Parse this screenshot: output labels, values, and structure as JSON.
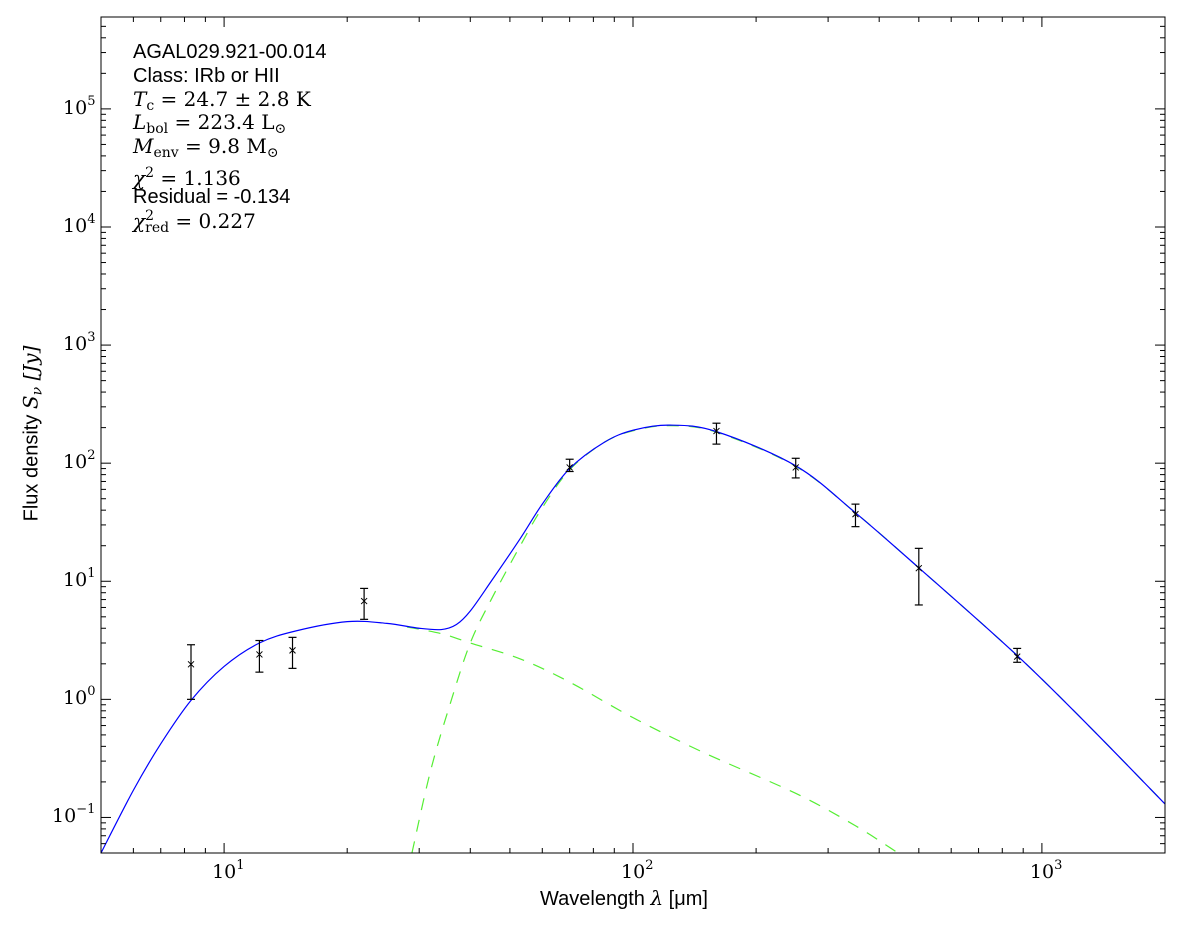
{
  "chart_data": {
    "type": "scatter",
    "title": "",
    "xlabel": {
      "text": "Wavelength ",
      "sym": "λ",
      "unit": " [μm]"
    },
    "ylabel": {
      "text": "Flux density ",
      "sym": "S",
      "sub": "ν",
      "unit": " [Jy]"
    },
    "xscale": "log",
    "yscale": "log",
    "xlim": [
      5,
      2000
    ],
    "ylim": [
      0.05,
      600000
    ],
    "grid": false,
    "x_ticks": [
      {
        "value": 10,
        "exp": "1"
      },
      {
        "value": 100,
        "exp": "2"
      },
      {
        "value": 1000,
        "exp": "3"
      }
    ],
    "y_ticks": [
      {
        "value": 0.1,
        "exp": "−1"
      },
      {
        "value": 1,
        "exp": "0"
      },
      {
        "value": 10,
        "exp": "1"
      },
      {
        "value": 100,
        "exp": "2"
      },
      {
        "value": 1000,
        "exp": "3"
      },
      {
        "value": 10000,
        "exp": "4"
      },
      {
        "value": 100000,
        "exp": "5"
      }
    ],
    "tick_base": "10",
    "colors": {
      "total_model": "#0000ff",
      "components": "#55ee33",
      "points": "#000000"
    },
    "observations": [
      {
        "x": 8.3,
        "y": 1.98,
        "lo": 1.0,
        "hi": 2.9
      },
      {
        "x": 12.2,
        "y": 2.4,
        "lo": 1.7,
        "hi": 3.15
      },
      {
        "x": 14.7,
        "y": 2.6,
        "lo": 1.83,
        "hi": 3.35
      },
      {
        "x": 22,
        "y": 6.8,
        "lo": 4.76,
        "hi": 8.7
      },
      {
        "x": 70,
        "y": 92,
        "lo": 85,
        "hi": 108
      },
      {
        "x": 160,
        "y": 187,
        "lo": 145,
        "hi": 218
      },
      {
        "x": 250,
        "y": 92,
        "lo": 75,
        "hi": 110
      },
      {
        "x": 350,
        "y": 37,
        "lo": 29,
        "hi": 45
      },
      {
        "x": 500,
        "y": 12.9,
        "lo": 6.3,
        "hi": 19
      },
      {
        "x": 870,
        "y": 2.3,
        "lo": 2.06,
        "hi": 2.7
      }
    ],
    "model_total": [
      [
        5,
        0.05
      ],
      [
        6,
        0.17
      ],
      [
        7,
        0.42
      ],
      [
        8.3,
        0.98
      ],
      [
        10,
        1.9
      ],
      [
        12.2,
        3.0
      ],
      [
        15,
        3.8
      ],
      [
        20,
        4.55
      ],
      [
        25,
        4.4
      ],
      [
        30,
        4.0
      ],
      [
        34,
        3.9
      ],
      [
        37,
        4.3
      ],
      [
        40,
        5.6
      ],
      [
        45,
        10
      ],
      [
        53,
        23
      ],
      [
        60,
        45
      ],
      [
        70,
        90
      ],
      [
        85,
        150
      ],
      [
        100,
        190
      ],
      [
        123,
        210
      ],
      [
        160,
        185
      ],
      [
        250,
        95
      ],
      [
        350,
        38
      ],
      [
        500,
        13
      ],
      [
        870,
        2.35
      ],
      [
        1300,
        0.6
      ],
      [
        2000,
        0.13
      ]
    ],
    "model_warm": [
      [
        28,
        4.1
      ],
      [
        34,
        3.6
      ],
      [
        40,
        3.0
      ],
      [
        53,
        2.2
      ],
      [
        70,
        1.4
      ],
      [
        100,
        0.7
      ],
      [
        150,
        0.35
      ],
      [
        250,
        0.16
      ],
      [
        350,
        0.085
      ],
      [
        445,
        0.05
      ]
    ],
    "model_cold": [
      [
        28.8,
        0.05
      ],
      [
        32,
        0.25
      ],
      [
        36,
        1.0
      ],
      [
        40,
        3.0
      ],
      [
        45,
        7
      ],
      [
        53,
        20
      ],
      [
        60,
        42
      ],
      [
        70,
        88
      ],
      [
        85,
        150
      ],
      [
        100,
        188
      ],
      [
        123,
        208
      ],
      [
        160,
        183
      ],
      [
        250,
        94
      ],
      [
        350,
        38
      ],
      [
        500,
        13
      ],
      [
        870,
        2.35
      ],
      [
        1300,
        0.6
      ],
      [
        2000,
        0.13
      ]
    ]
  },
  "annotations": {
    "source": "AGAL029.921-00.014",
    "class": "Class: IRb or HII",
    "tc": {
      "sym": "T",
      "sub": "c",
      "rest": " = 24.7 ± 2.8 K"
    },
    "lbol": {
      "sym": "L",
      "sub": "bol",
      "rest": " = 223.4 L",
      "tail": "⊙"
    },
    "menv": {
      "sym": "M",
      "sub": "env",
      "rest": " = 9.8 M",
      "tail": "⊙"
    },
    "chi2": {
      "sym": "χ",
      "sup": "2",
      "rest": " = 1.136"
    },
    "residual": "Residual = -0.134",
    "chi2red": {
      "sym": "χ",
      "sup": "2",
      "sub": "red",
      "rest": " = 0.227"
    }
  }
}
